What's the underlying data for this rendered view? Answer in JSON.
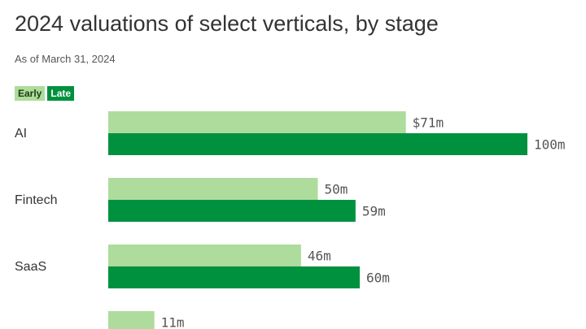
{
  "chart_data": {
    "type": "bar",
    "orientation": "horizontal",
    "title": "2024 valuations of select verticals, by stage",
    "subtitle": "As of March 31, 2024",
    "categories": [
      "AI",
      "Fintech",
      "SaaS",
      ""
    ],
    "series": [
      {
        "name": "Early",
        "color": "#addc9c",
        "text_color": "#1a3d12",
        "values": [
          71,
          50,
          46,
          11
        ],
        "labels": [
          "$71m",
          "50m",
          "46m",
          "11m"
        ]
      },
      {
        "name": "Late",
        "color": "#00913f",
        "text_color": "#ffffff",
        "values": [
          100,
          59,
          60,
          null
        ],
        "labels": [
          "100m",
          "59m",
          "60m",
          ""
        ]
      }
    ],
    "value_unit": "millions USD",
    "legend_position": "top-left",
    "grid": false
  }
}
